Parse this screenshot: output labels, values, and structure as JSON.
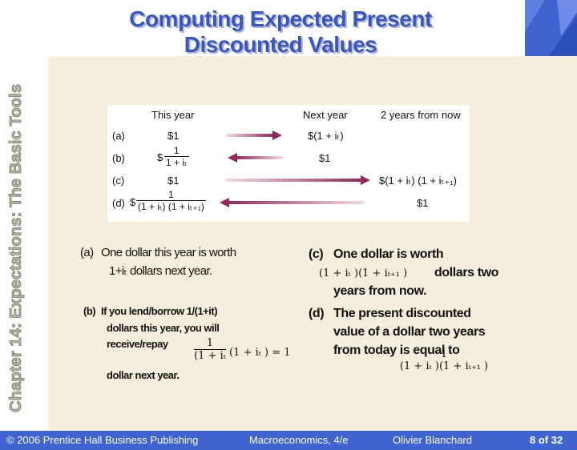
{
  "title_line1": "Computing Expected Present",
  "title_line2": "Discounted Values",
  "side_title": "Chapter 14: Expectations: The Basic Tools",
  "figure": {
    "headers": [
      "This year",
      "Next year",
      "2 years from now"
    ],
    "row_labels": [
      "(a)",
      "(b)",
      "(c)",
      "(d)"
    ],
    "a_this": "$1",
    "a_next": "$(1 + iₜ)",
    "b_dollar": "$",
    "b_num": "1",
    "b_den": "1 + iₜ",
    "b_next": "$1",
    "c_this": "$1",
    "c_two": "$(1 + iₜ) (1 + iₜ₊₁)",
    "d_dollar": "$",
    "d_num": "1",
    "d_den": "(1 + iₜ) (1 + iₜ₊₁)",
    "d_two": "$1"
  },
  "left": {
    "a_label": "(a)",
    "a_line1": "One dollar this year is worth",
    "a_line2": "1+iₜ dollars next year.",
    "b_label": "(b)",
    "b_line1": "If you lend/borrow 1/(1+it)",
    "b_line2": "dollars this year, you will",
    "b_line3": "receive/repay",
    "b_line4": "dollar next year.",
    "b_num": "1",
    "b_den": "(1 + iₜ",
    "b_rest": "(1 + iₜ ) = 1"
  },
  "right": {
    "c_label": "(c)",
    "c_line1": "One dollar is worth",
    "c_math": "(1 + iₜ )(1 + iₜ₊₁ )",
    "c_line2": "dollars two",
    "c_line3": "years from now.",
    "d_label": "(d)",
    "d_line1": "The present discounted",
    "d_line2": "value of a dollar two years",
    "d_line3": "from today is equal to",
    "d_num": "1",
    "d_den": "(1 + iₜ )(1 + iₜ₊₁ )"
  },
  "footer": {
    "copyright": "© 2006 Prentice Hall Business Publishing",
    "book": "Macroeconomics, 4/e",
    "author": "Olivier Blanchard",
    "page": "8 of 32"
  },
  "colors": {
    "accent_blue": "#3f63cf",
    "title_blue": "#3b56b8",
    "arrow": "#8e2a5c",
    "beige": "#f6eedc"
  }
}
